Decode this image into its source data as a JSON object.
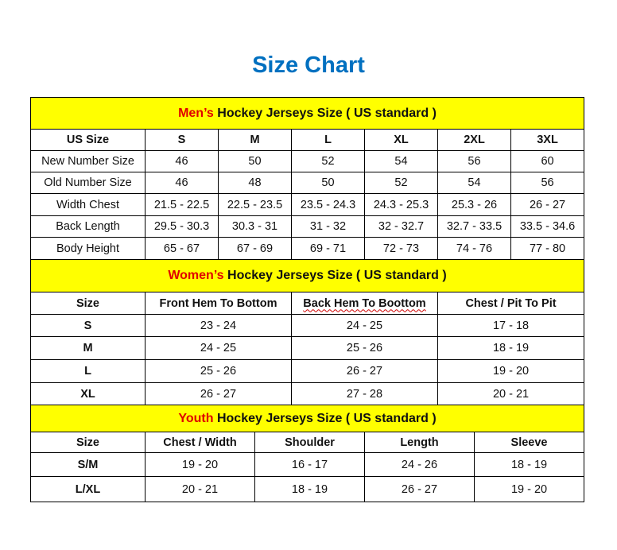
{
  "title": "Size Chart",
  "men": {
    "heading_highlight": "Men’s",
    "heading_rest": " Hockey Jerseys Size ( US standard )",
    "columns": [
      "US Size",
      "S",
      "M",
      "L",
      "XL",
      "2XL",
      "3XL"
    ],
    "rows": [
      [
        "New Number Size",
        "46",
        "50",
        "52",
        "54",
        "56",
        "60"
      ],
      [
        "Old Number Size",
        "46",
        "48",
        "50",
        "52",
        "54",
        "56"
      ],
      [
        "Width Chest",
        "21.5 - 22.5",
        "22.5 - 23.5",
        "23.5 - 24.3",
        "24.3 - 25.3",
        "25.3 - 26",
        "26 - 27"
      ],
      [
        "Back Length",
        "29.5 - 30.3",
        "30.3 - 31",
        "31 - 32",
        "32 - 32.7",
        "32.7 - 33.5",
        "33.5 - 34.6"
      ],
      [
        "Body Height",
        "65 - 67",
        "67 - 69",
        "69 - 71",
        "72 - 73",
        "74 - 76",
        "77 - 80"
      ]
    ]
  },
  "women": {
    "heading_highlight": "Women’s",
    "heading_rest": " Hockey Jerseys Size ( US standard )",
    "columns": [
      "Size",
      "Front Hem To Bottom",
      "Back Hem To Boottom",
      "Chest / Pit To Pit"
    ],
    "rows": [
      [
        "S",
        "23 - 24",
        "24 - 25",
        "17 - 18"
      ],
      [
        "M",
        "24 - 25",
        "25 - 26",
        "18 - 19"
      ],
      [
        "L",
        "25 - 26",
        "26 - 27",
        "19 - 20"
      ],
      [
        "XL",
        "26 - 27",
        "27 - 28",
        "20 - 21"
      ]
    ]
  },
  "youth": {
    "heading_highlight": "Youth",
    "heading_rest": " Hockey Jerseys Size ( US standard )",
    "columns": [
      "Size",
      "Chest / Width",
      "Shoulder",
      "Length",
      "Sleeve"
    ],
    "rows": [
      [
        "S/M",
        "19 - 20",
        "16 - 17",
        "24 - 26",
        "18 - 19"
      ],
      [
        "L/XL",
        "20 - 21",
        "18 - 19",
        "26 - 27",
        "19 - 20"
      ]
    ]
  },
  "colors": {
    "title": "#0070C0",
    "section_bg": "#FFFF00",
    "highlight": "#E00000"
  }
}
